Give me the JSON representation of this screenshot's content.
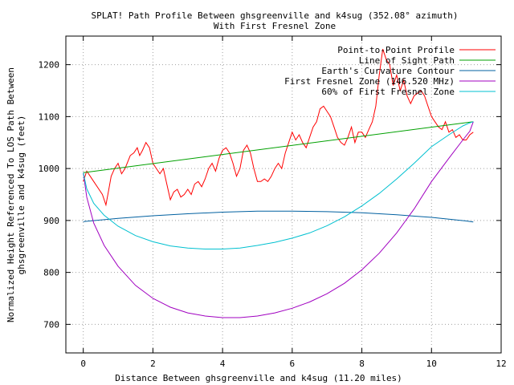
{
  "chart_data": {
    "type": "line",
    "title": "SPLAT! Path Profile Between ghsgreenville and k4sug (352.08° azimuth)",
    "subtitle": "With First Fresnel Zone",
    "xlabel": "Distance Between ghsgreenville and k4sug (11.20 miles)",
    "ylabel_line1": "Normalized Height Referenced To LOS Path Between",
    "ylabel_line2": "ghsgreenville and k4sug (feet)",
    "xlim": [
      -0.5,
      12
    ],
    "ylim": [
      645,
      1255
    ],
    "x_ticks": [
      0,
      2,
      4,
      6,
      8,
      10,
      12
    ],
    "y_ticks": [
      700,
      800,
      900,
      1000,
      1100,
      1200
    ],
    "grid": true,
    "legend_position": "top-right",
    "series": [
      {
        "name": "Point-to-Point Profile",
        "color": "#ff0000",
        "x": [
          0,
          0.1,
          0.2,
          0.3,
          0.45,
          0.55,
          0.65,
          0.72,
          0.8,
          0.9,
          1.0,
          1.1,
          1.2,
          1.35,
          1.45,
          1.55,
          1.62,
          1.7,
          1.8,
          1.9,
          2.0,
          2.1,
          2.2,
          2.3,
          2.4,
          2.5,
          2.6,
          2.7,
          2.8,
          2.9,
          3.0,
          3.1,
          3.2,
          3.3,
          3.4,
          3.5,
          3.6,
          3.7,
          3.8,
          3.9,
          4.0,
          4.1,
          4.2,
          4.3,
          4.4,
          4.5,
          4.6,
          4.7,
          4.8,
          4.9,
          5.0,
          5.1,
          5.2,
          5.3,
          5.4,
          5.5,
          5.6,
          5.7,
          5.8,
          5.9,
          6.0,
          6.1,
          6.2,
          6.3,
          6.4,
          6.5,
          6.6,
          6.7,
          6.8,
          6.9,
          7.0,
          7.1,
          7.2,
          7.3,
          7.4,
          7.5,
          7.6,
          7.7,
          7.8,
          7.9,
          8.0,
          8.1,
          8.2,
          8.3,
          8.4,
          8.5,
          8.6,
          8.7,
          8.8,
          8.9,
          9.0,
          9.1,
          9.2,
          9.3,
          9.4,
          9.5,
          9.6,
          9.7,
          9.8,
          9.9,
          10.0,
          10.1,
          10.2,
          10.3,
          10.4,
          10.5,
          10.6,
          10.7,
          10.8,
          10.9,
          11.0,
          11.1,
          11.2
        ],
        "y": [
          975,
          995,
          985,
          975,
          960,
          950,
          930,
          955,
          985,
          1000,
          1010,
          990,
          1000,
          1025,
          1030,
          1040,
          1025,
          1035,
          1050,
          1040,
          1010,
          1000,
          990,
          1000,
          970,
          940,
          955,
          960,
          945,
          950,
          960,
          950,
          970,
          975,
          965,
          980,
          1000,
          1010,
          995,
          1020,
          1035,
          1040,
          1030,
          1010,
          985,
          1000,
          1035,
          1045,
          1030,
          1000,
          975,
          975,
          980,
          975,
          985,
          1000,
          1010,
          1000,
          1030,
          1050,
          1070,
          1055,
          1065,
          1050,
          1040,
          1060,
          1080,
          1090,
          1115,
          1120,
          1110,
          1100,
          1080,
          1060,
          1050,
          1045,
          1060,
          1080,
          1050,
          1070,
          1070,
          1060,
          1075,
          1090,
          1120,
          1180,
          1230,
          1210,
          1200,
          1160,
          1180,
          1150,
          1170,
          1140,
          1125,
          1140,
          1145,
          1150,
          1140,
          1120,
          1100,
          1090,
          1080,
          1075,
          1090,
          1070,
          1075,
          1060,
          1065,
          1055,
          1055,
          1065,
          1070
        ]
      },
      {
        "name": "Line of Sight Path",
        "color": "#00a000",
        "x": [
          0,
          11.2
        ],
        "y": [
          992,
          1090
        ]
      },
      {
        "name": "Earth's Curvature Contour",
        "color": "#0060a0",
        "x": [
          0,
          1,
          2,
          3,
          4,
          5,
          6,
          7,
          8,
          9,
          10,
          11,
          11.2
        ],
        "y": [
          898,
          904,
          909,
          913,
          916,
          918,
          918,
          917,
          915,
          911,
          906,
          899,
          897
        ]
      },
      {
        "name": "First Fresnel Zone (146.520 MHz)",
        "color": "#a000c0",
        "x": [
          0,
          0.1,
          0.3,
          0.6,
          1,
          1.5,
          2,
          2.5,
          3,
          3.5,
          4,
          4.5,
          5,
          5.5,
          6,
          6.5,
          7,
          7.5,
          8,
          8.5,
          9,
          9.5,
          10,
          10.5,
          10.9,
          11.1,
          11.2
        ],
        "y": [
          992,
          945,
          895,
          852,
          812,
          775,
          750,
          733,
          722,
          716,
          713,
          713,
          716,
          722,
          731,
          743,
          759,
          779,
          805,
          837,
          876,
          922,
          975,
          1020,
          1055,
          1072,
          1090
        ]
      },
      {
        "name": "60% of First Fresnel Zone",
        "color": "#00c0d0",
        "x": [
          0,
          0.1,
          0.3,
          0.6,
          1,
          1.5,
          2,
          2.5,
          3,
          3.5,
          4,
          4.5,
          5,
          5.5,
          6,
          6.5,
          7,
          7.5,
          8,
          8.5,
          9,
          9.5,
          10,
          10.5,
          10.9,
          11.1,
          11.2
        ],
        "y": [
          992,
          961,
          933,
          910,
          889,
          871,
          859,
          851,
          847,
          845,
          845,
          847,
          852,
          858,
          866,
          876,
          890,
          907,
          928,
          952,
          980,
          1010,
          1042,
          1065,
          1082,
          1088,
          1090
        ]
      }
    ]
  }
}
